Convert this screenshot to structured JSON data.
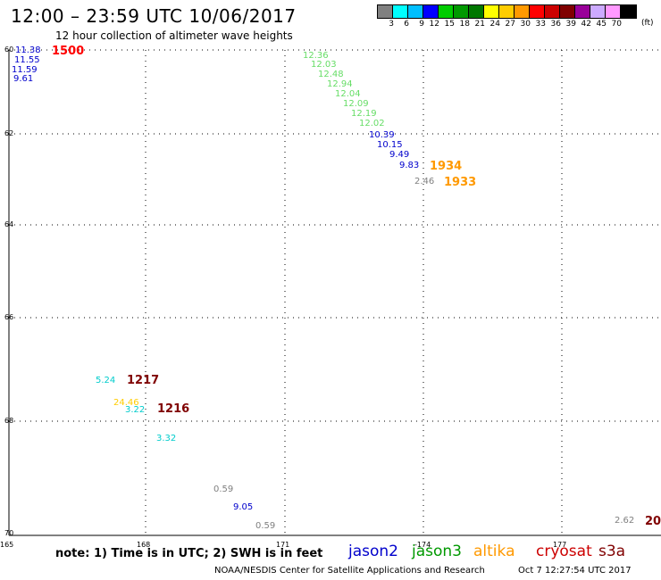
{
  "header": {
    "title": "12:00 – 23:59 UTC 10/06/2017",
    "subtitle": "12 hour collection of altimeter wave heights"
  },
  "legend": {
    "colors": [
      "#808080",
      "#00ffff",
      "#00bfff",
      "#0000ff",
      "#00cc00",
      "#009900",
      "#007700",
      "#ffff00",
      "#ffcc00",
      "#ff9900",
      "#ff0000",
      "#cc0000",
      "#800000",
      "#990099",
      "#ccaaff",
      "#ff99ff",
      "#000000"
    ],
    "labels": [
      "3",
      "6",
      "9",
      "12",
      "15",
      "18",
      "21",
      "24",
      "27",
      "30",
      "33",
      "36",
      "39",
      "42",
      "45",
      "70"
    ],
    "unit": "(ft)"
  },
  "axes": {
    "y_labels": [
      "60",
      "62",
      "64",
      "66",
      "68",
      "70"
    ],
    "x_labels": [
      "165",
      "168",
      "171",
      "-174",
      "177"
    ]
  },
  "observations": [
    {
      "text": "11.38",
      "color": "#0000cc"
    },
    {
      "text": "11.55",
      "color": "#0000cc"
    },
    {
      "text": "11.59",
      "color": "#0000cc"
    },
    {
      "text": "9.61",
      "color": "#0000cc"
    },
    {
      "text": "12.36",
      "color": "#66dd66"
    },
    {
      "text": "12.03",
      "color": "#66dd66"
    },
    {
      "text": "12.48",
      "color": "#66dd66"
    },
    {
      "text": "12.94",
      "color": "#66dd66"
    },
    {
      "text": "12.04",
      "color": "#66dd66"
    },
    {
      "text": "12.09",
      "color": "#66dd66"
    },
    {
      "text": "12.19",
      "color": "#66dd66"
    },
    {
      "text": "12.02",
      "color": "#66dd66"
    },
    {
      "text": "10.39",
      "color": "#0000cc"
    },
    {
      "text": "10.15",
      "color": "#0000cc"
    },
    {
      "text": "9.49",
      "color": "#0000cc"
    },
    {
      "text": "9.83",
      "color": "#0000cc"
    },
    {
      "text": "2.46",
      "color": "#808080"
    },
    {
      "text": "5.24",
      "color": "#00cccc"
    },
    {
      "text": "24.46",
      "color": "#ffcc00"
    },
    {
      "text": "3.22",
      "color": "#00cccc"
    },
    {
      "text": "3.32",
      "color": "#00cccc"
    },
    {
      "text": "0.59",
      "color": "#808080"
    },
    {
      "text": "9.05",
      "color": "#0000cc"
    },
    {
      "text": "0.59",
      "color": "#808080"
    },
    {
      "text": "2.62",
      "color": "#808080"
    }
  ],
  "times": [
    {
      "text": "1500",
      "color": "#ff0000"
    },
    {
      "text": "1934",
      "color": "#ff9900"
    },
    {
      "text": "1933",
      "color": "#ff9900"
    },
    {
      "text": "1217",
      "color": "#800000"
    },
    {
      "text": "1216",
      "color": "#800000"
    },
    {
      "text": "20",
      "color": "#800000"
    }
  ],
  "footer": {
    "note": "note: 1) Time is in UTC; 2) SWH is in feet",
    "satellites": [
      {
        "name": "jason2",
        "color": "#0000cc"
      },
      {
        "name": "jason3",
        "color": "#009900"
      },
      {
        "name": "altika",
        "color": "#ff9900"
      },
      {
        "name": "cryosat",
        "color": "#cc0000"
      },
      {
        "name": "s3a",
        "color": "#800000"
      }
    ],
    "credit": "NOAA/NESDIS Center for Satellite Applications and Research",
    "timestamp": "Oct  7 12:27:54 UTC 2017"
  }
}
